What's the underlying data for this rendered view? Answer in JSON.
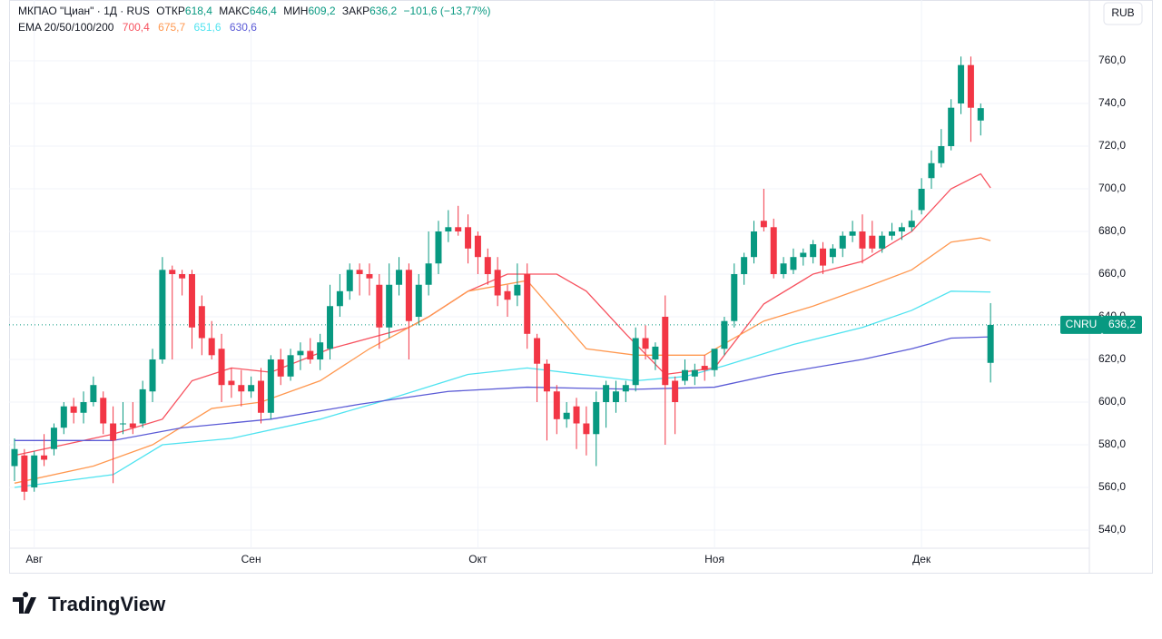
{
  "chart_data": {
    "type": "candlestick",
    "header": {
      "symbol": "МКПАО \"Циан\" · 1Д · RUS",
      "open_label": "ОТКР",
      "open": "618,4",
      "high_label": "МАКС",
      "high": "646,4",
      "low_label": "МИН",
      "low": "609,2",
      "close_label": "ЗАКР",
      "close": "636,2",
      "change": "−101,6 (−13,77%)"
    },
    "indicator_label": "EMA 20/50/100/200",
    "currency": "RUB",
    "price_tag": {
      "ticker": "CNRU",
      "value": 636.2,
      "label": "636,2"
    },
    "brand": "TradingView",
    "up_color": "#089981",
    "down_color": "#f23645",
    "categories": [
      null,
      null,
      "Авг",
      null,
      null,
      null,
      null,
      null,
      null,
      null,
      null,
      null,
      null,
      null,
      null,
      null,
      null,
      null,
      null,
      null,
      null,
      null,
      null,
      null,
      "Сен",
      null,
      null,
      null,
      null,
      null,
      null,
      null,
      null,
      null,
      null,
      null,
      null,
      null,
      null,
      null,
      null,
      null,
      null,
      null,
      null,
      null,
      null,
      "Окт",
      null,
      null,
      null,
      null,
      null,
      null,
      null,
      null,
      null,
      null,
      null,
      null,
      null,
      null,
      null,
      null,
      null,
      null,
      null,
      null,
      null,
      null,
      null,
      "Ноя",
      null,
      null,
      null,
      null,
      null,
      null,
      null,
      null,
      null,
      null,
      null,
      null,
      null,
      null,
      null,
      null,
      null,
      null,
      null,
      null,
      "Дек",
      null,
      null,
      null,
      null,
      null,
      null,
      null
    ],
    "open": [
      570,
      575,
      560,
      575,
      578,
      588,
      598,
      595,
      600,
      602,
      590,
      590,
      590,
      590,
      605,
      620,
      662,
      660,
      660,
      645,
      630,
      625,
      610,
      608,
      605,
      610,
      595,
      620,
      612,
      622,
      624,
      620,
      625,
      645,
      652,
      662,
      660,
      655,
      635,
      655,
      662,
      640,
      655,
      665,
      680,
      682,
      682,
      678,
      668,
      662,
      652,
      650,
      660,
      630,
      618,
      605,
      592,
      598,
      590,
      585,
      600,
      600,
      605,
      608,
      630,
      620,
      640,
      610,
      610,
      612,
      617,
      615,
      625,
      638,
      660,
      668,
      685,
      682,
      660,
      662,
      668,
      668,
      672,
      668,
      672,
      678,
      680,
      678,
      672,
      678,
      680,
      682,
      690,
      705,
      712,
      720,
      740,
      758,
      732,
      618.4
    ],
    "high": [
      583,
      578,
      577,
      585,
      590,
      600,
      602,
      605,
      612,
      605,
      598,
      600,
      600,
      610,
      625,
      668,
      664,
      662,
      662,
      650,
      638,
      632,
      616,
      615,
      612,
      616,
      622,
      625,
      625,
      628,
      630,
      632,
      655,
      660,
      665,
      665,
      665,
      660,
      665,
      668,
      665,
      660,
      680,
      685,
      690,
      692,
      688,
      680,
      672,
      668,
      655,
      665,
      665,
      632,
      620,
      608,
      600,
      602,
      598,
      605,
      610,
      610,
      610,
      635,
      636,
      628,
      650,
      612,
      620,
      618,
      622,
      625,
      640,
      665,
      670,
      685,
      700,
      686,
      668,
      672,
      672,
      676,
      675,
      674,
      680,
      685,
      688,
      685,
      680,
      684,
      684,
      690,
      705,
      718,
      728,
      742,
      762,
      762,
      740,
      646.4
    ],
    "low": [
      563,
      554,
      558,
      570,
      575,
      585,
      590,
      590,
      598,
      585,
      562,
      585,
      585,
      588,
      600,
      618,
      620,
      650,
      625,
      622,
      620,
      600,
      602,
      598,
      602,
      590,
      592,
      608,
      610,
      615,
      618,
      615,
      620,
      640,
      648,
      650,
      650,
      625,
      630,
      650,
      620,
      636,
      650,
      660,
      675,
      678,
      665,
      660,
      655,
      645,
      640,
      645,
      625,
      600,
      582,
      585,
      588,
      578,
      575,
      570,
      588,
      595,
      600,
      605,
      620,
      615,
      580,
      585,
      608,
      608,
      610,
      612,
      622,
      635,
      655,
      665,
      680,
      658,
      658,
      660,
      664,
      665,
      660,
      665,
      668,
      675,
      665,
      670,
      670,
      676,
      676,
      680,
      688,
      700,
      710,
      718,
      735,
      722,
      725,
      609.2
    ],
    "close": [
      578,
      558,
      575,
      573,
      588,
      598,
      595,
      600,
      608,
      590,
      582,
      590,
      588,
      606,
      620,
      662,
      660,
      658,
      635,
      630,
      622,
      608,
      608,
      605,
      608,
      595,
      620,
      612,
      622,
      624,
      620,
      628,
      645,
      652,
      662,
      660,
      658,
      635,
      655,
      662,
      638,
      655,
      665,
      680,
      682,
      680,
      672,
      668,
      660,
      650,
      648,
      655,
      632,
      618,
      605,
      592,
      595,
      590,
      585,
      600,
      608,
      605,
      608,
      630,
      625,
      626,
      608,
      600,
      615,
      615,
      615,
      625,
      638,
      660,
      668,
      680,
      682,
      660,
      665,
      668,
      670,
      674,
      664,
      672,
      678,
      680,
      672,
      672,
      678,
      680,
      682,
      685,
      700,
      712,
      720,
      738,
      758,
      738,
      737.8,
      636.2
    ],
    "series": [
      {
        "name": "EMA 20",
        "color": "#f7525f",
        "legend_value": "700,4",
        "x": [
          0,
          5,
          10,
          15,
          18,
          22,
          26,
          32,
          40,
          42,
          46,
          50,
          55,
          58,
          62,
          66,
          71,
          76,
          81,
          86,
          91,
          95,
          98,
          99
        ],
        "values": [
          575,
          580,
          585,
          592,
          610,
          616,
          614,
          625,
          635,
          640,
          652,
          660,
          660,
          652,
          632,
          613,
          616,
          646,
          660,
          666,
          680,
          700,
          707,
          700.4
        ]
      },
      {
        "name": "EMA 50",
        "color": "#ff9850",
        "legend_value": "675,7",
        "x": [
          0,
          8,
          14,
          20,
          25,
          31,
          36,
          42,
          46,
          52,
          58,
          63,
          70,
          76,
          81,
          87,
          91,
          95,
          98,
          99
        ],
        "values": [
          562,
          570,
          580,
          597,
          600,
          610,
          625,
          640,
          652,
          657,
          625,
          622,
          622,
          638,
          645,
          655,
          662,
          675,
          677,
          675.7
        ]
      },
      {
        "name": "EMA 100",
        "color": "#4fe3f0",
        "legend_value": "651,6",
        "x": [
          0,
          10,
          15,
          22,
          31,
          37,
          46,
          52,
          63,
          68,
          72,
          79,
          86,
          91,
          95,
          99
        ],
        "values": [
          560,
          566,
          580,
          583,
          592,
          600,
          613,
          616,
          610,
          612,
          617,
          627,
          635,
          643,
          652,
          651.6
        ]
      },
      {
        "name": "EMA 200",
        "color": "#5b5bd6",
        "legend_value": "630,6",
        "x": [
          0,
          10,
          17,
          26,
          35,
          44,
          52,
          63,
          71,
          77,
          86,
          91,
          95,
          99
        ],
        "values": [
          582,
          582,
          588,
          592,
          599,
          605,
          607,
          606,
          607,
          613,
          620,
          625,
          630,
          630.6
        ]
      }
    ],
    "ylim": [
      531.5,
      788.5
    ],
    "yticks": [
      {
        "value": 540,
        "label": "540,0"
      },
      {
        "value": 560,
        "label": "560,0"
      },
      {
        "value": 580,
        "label": "580,0"
      },
      {
        "value": 600,
        "label": "600,0"
      },
      {
        "value": 620,
        "label": "620,0"
      },
      {
        "value": 640,
        "label": "640,0"
      },
      {
        "value": 660,
        "label": "660,0"
      },
      {
        "value": 680,
        "label": "680,0"
      },
      {
        "value": 700,
        "label": "700,0"
      },
      {
        "value": 720,
        "label": "720,0"
      },
      {
        "value": 740,
        "label": "740,0"
      },
      {
        "value": 760,
        "label": "760,0"
      }
    ],
    "grid": true
  }
}
